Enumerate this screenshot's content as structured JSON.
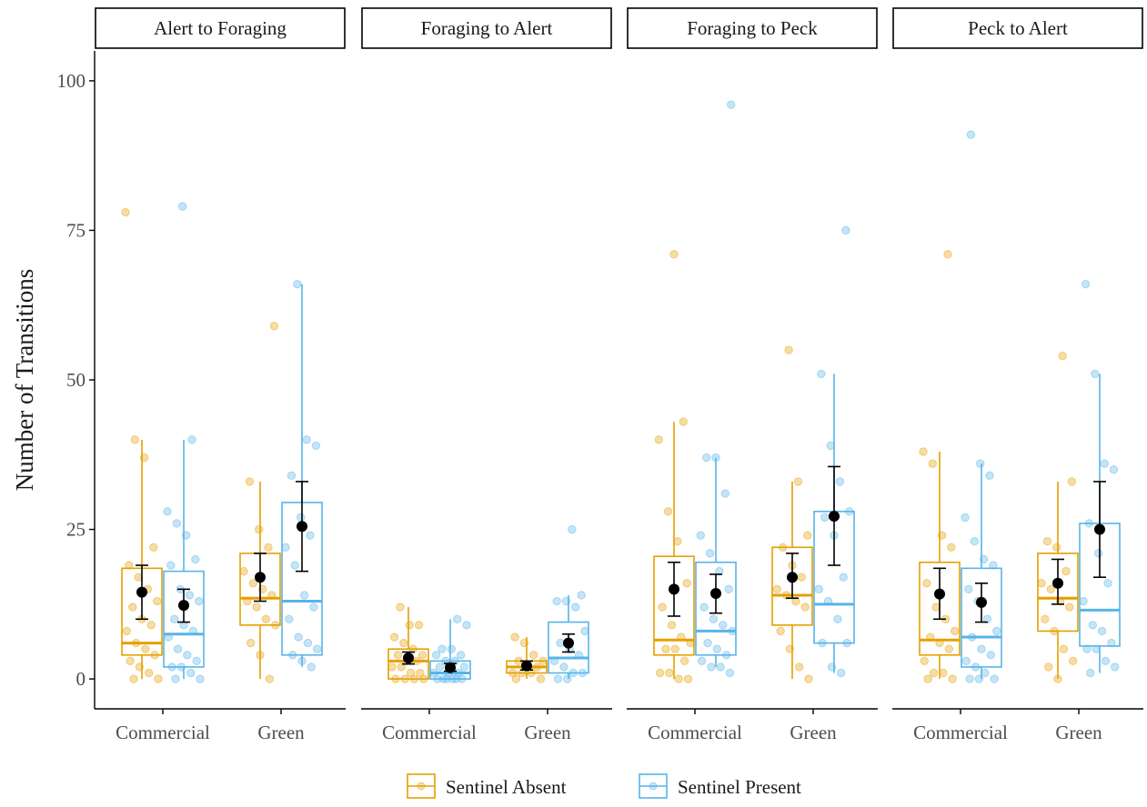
{
  "chart_data": {
    "type": "boxplot",
    "ylabel": "Number of Transitions",
    "xlabel": "",
    "ylim": [
      -5,
      105
    ],
    "yticks": [
      0,
      25,
      50,
      75,
      100
    ],
    "categories": [
      "Commercial",
      "Green"
    ],
    "legend": {
      "placement": "bottom",
      "entries": [
        {
          "name": "Sentinel Absent",
          "color": "#E69F00"
        },
        {
          "name": "Sentinel Present",
          "color": "#56B4E9"
        }
      ]
    },
    "panels": [
      {
        "title": "Alert to Foraging",
        "groups": [
          {
            "category": "Commercial",
            "series": "Sentinel Absent",
            "box": {
              "whislo": 0,
              "q1": 4,
              "med": 6,
              "q3": 18.5,
              "whishi": 40
            },
            "mean": 14.5,
            "ci": [
              10,
              19
            ],
            "points": [
              78,
              40,
              37,
              22,
              19,
              17,
              15,
              13,
              12,
              10,
              9,
              8,
              6,
              5,
              4,
              3,
              2,
              1,
              0,
              0
            ]
          },
          {
            "category": "Commercial",
            "series": "Sentinel Present",
            "box": {
              "whislo": 0,
              "q1": 2,
              "med": 7.5,
              "q3": 18,
              "whishi": 40
            },
            "mean": 12.3,
            "ci": [
              9.5,
              15
            ],
            "points": [
              79,
              40,
              28,
              26,
              24,
              20,
              19,
              15,
              14,
              13,
              10,
              9,
              8,
              7,
              5,
              4,
              3,
              2,
              2,
              1,
              0,
              0
            ]
          },
          {
            "category": "Green",
            "series": "Sentinel Absent",
            "box": {
              "whislo": 0,
              "q1": 9,
              "med": 13.5,
              "q3": 21,
              "whishi": 33
            },
            "mean": 17,
            "ci": [
              13,
              21
            ],
            "points": [
              59,
              33,
              25,
              22,
              18,
              16,
              15,
              14,
              13,
              12,
              10,
              9,
              6,
              4,
              0
            ]
          },
          {
            "category": "Green",
            "series": "Sentinel Present",
            "box": {
              "whislo": 2,
              "q1": 4,
              "med": 13,
              "q3": 29.5,
              "whishi": 66
            },
            "mean": 25.5,
            "ci": [
              18,
              33
            ],
            "points": [
              66,
              40,
              39,
              34,
              27,
              24,
              22,
              19,
              14,
              12,
              10,
              7,
              6,
              5,
              4,
              3,
              2
            ]
          }
        ]
      },
      {
        "title": "Foraging to Alert",
        "groups": [
          {
            "category": "Commercial",
            "series": "Sentinel Absent",
            "box": {
              "whislo": 0,
              "q1": 0,
              "med": 3,
              "q3": 5,
              "whishi": 12
            },
            "mean": 3.5,
            "ci": [
              2.5,
              4.5
            ],
            "points": [
              12,
              9,
              9,
              7,
              6,
              5,
              4,
              4,
              3,
              3,
              2,
              2,
              1,
              1,
              0,
              0,
              0,
              0
            ]
          },
          {
            "category": "Commercial",
            "series": "Sentinel Present",
            "box": {
              "whislo": 0,
              "q1": 0,
              "med": 1,
              "q3": 3,
              "whishi": 10
            },
            "mean": 1.9,
            "ci": [
              1.3,
              2.6
            ],
            "points": [
              10,
              9,
              5,
              5,
              4,
              4,
              3,
              3,
              2,
              2,
              1,
              1,
              1,
              0,
              0,
              0,
              0,
              0,
              0
            ]
          },
          {
            "category": "Green",
            "series": "Sentinel Absent",
            "box": {
              "whislo": 0,
              "q1": 1,
              "med": 2,
              "q3": 3,
              "whishi": 7
            },
            "mean": 2.2,
            "ci": [
              1.5,
              3
            ],
            "points": [
              7,
              6,
              4,
              3,
              3,
              2,
              2,
              1,
              1,
              1,
              0,
              0
            ]
          },
          {
            "category": "Green",
            "series": "Sentinel Present",
            "box": {
              "whislo": 0,
              "q1": 1,
              "med": 3.5,
              "q3": 9.5,
              "whishi": 14
            },
            "mean": 6,
            "ci": [
              4.5,
              7.5
            ],
            "points": [
              25,
              14,
              13,
              13,
              12,
              8,
              6,
              5,
              4,
              3,
              2,
              1,
              1,
              0,
              0
            ]
          }
        ]
      },
      {
        "title": "Foraging to Peck",
        "groups": [
          {
            "category": "Commercial",
            "series": "Sentinel Absent",
            "box": {
              "whislo": 0,
              "q1": 4,
              "med": 6.5,
              "q3": 20.5,
              "whishi": 43
            },
            "mean": 15,
            "ci": [
              10.5,
              19.5
            ],
            "points": [
              71,
              43,
              40,
              28,
              23,
              16,
              12,
              9,
              7,
              6,
              5,
              5,
              3,
              1,
              1,
              0,
              0
            ]
          },
          {
            "category": "Commercial",
            "series": "Sentinel Present",
            "box": {
              "whislo": 2,
              "q1": 4,
              "med": 8,
              "q3": 19.5,
              "whishi": 37
            },
            "mean": 14.3,
            "ci": [
              11,
              17.5
            ],
            "points": [
              96,
              37,
              37,
              31,
              24,
              21,
              18,
              15,
              12,
              10,
              9,
              8,
              6,
              5,
              4,
              3,
              2,
              2,
              1
            ]
          },
          {
            "category": "Green",
            "series": "Sentinel Absent",
            "box": {
              "whislo": 0,
              "q1": 9,
              "med": 14,
              "q3": 22,
              "whishi": 33
            },
            "mean": 17,
            "ci": [
              13.5,
              21
            ],
            "points": [
              55,
              33,
              24,
              22,
              19,
              17,
              15,
              14,
              13,
              12,
              8,
              5,
              2,
              0
            ]
          },
          {
            "category": "Green",
            "series": "Sentinel Present",
            "box": {
              "whislo": 1,
              "q1": 6,
              "med": 12.5,
              "q3": 28,
              "whishi": 51
            },
            "mean": 27.2,
            "ci": [
              19,
              35.5
            ],
            "points": [
              75,
              51,
              39,
              33,
              28,
              27,
              24,
              17,
              15,
              13,
              10,
              6,
              6,
              2,
              1
            ]
          }
        ]
      },
      {
        "title": "Peck to Alert",
        "groups": [
          {
            "category": "Commercial",
            "series": "Sentinel Absent",
            "box": {
              "whislo": 0,
              "q1": 4,
              "med": 6.5,
              "q3": 19.5,
              "whishi": 38
            },
            "mean": 14.2,
            "ci": [
              10,
              18.5
            ],
            "points": [
              71,
              38,
              36,
              24,
              22,
              16,
              12,
              10,
              8,
              7,
              6,
              5,
              3,
              1,
              1,
              0,
              0
            ]
          },
          {
            "category": "Commercial",
            "series": "Sentinel Present",
            "box": {
              "whislo": 0,
              "q1": 2,
              "med": 7,
              "q3": 18.5,
              "whishi": 36
            },
            "mean": 12.8,
            "ci": [
              9.5,
              16
            ],
            "points": [
              91,
              36,
              34,
              27,
              23,
              20,
              19,
              15,
              13,
              10,
              8,
              7,
              5,
              4,
              3,
              2,
              1,
              0,
              0,
              0
            ]
          },
          {
            "category": "Green",
            "series": "Sentinel Absent",
            "box": {
              "whislo": 0,
              "q1": 8,
              "med": 13.5,
              "q3": 21,
              "whishi": 33
            },
            "mean": 16,
            "ci": [
              12.5,
              20
            ],
            "points": [
              54,
              33,
              23,
              22,
              18,
              16,
              15,
              13,
              12,
              10,
              8,
              5,
              3,
              2,
              0
            ]
          },
          {
            "category": "Green",
            "series": "Sentinel Present",
            "box": {
              "whislo": 1,
              "q1": 5.5,
              "med": 11.5,
              "q3": 26,
              "whishi": 51
            },
            "mean": 25,
            "ci": [
              17,
              33
            ],
            "points": [
              66,
              51,
              36,
              35,
              26,
              21,
              16,
              13,
              9,
              8,
              6,
              5,
              5,
              3,
              2,
              1
            ]
          }
        ]
      }
    ]
  }
}
